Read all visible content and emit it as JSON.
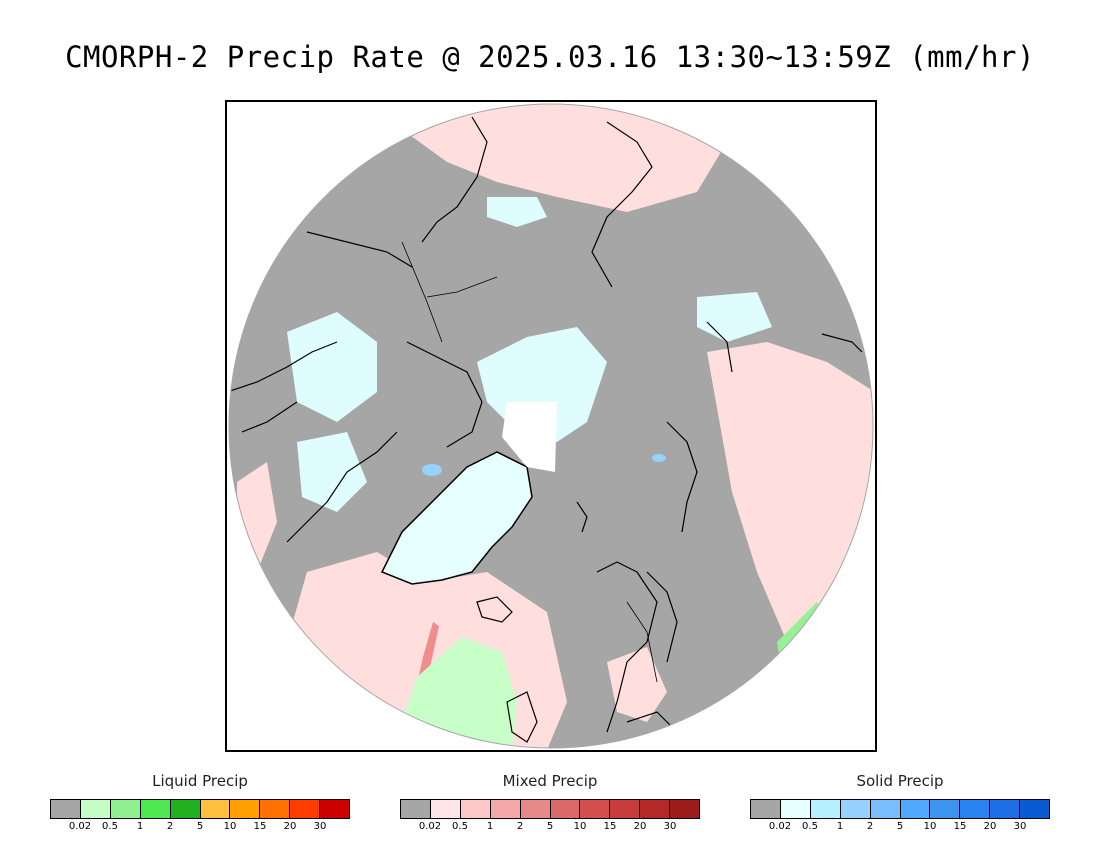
{
  "title": "CMORPH-2 Precip Rate @ 2025.03.16 13:30~13:59Z (mm/hr)",
  "map": {
    "projection": "north polar stereographic",
    "background_color": "#a6a6a6",
    "features": [
      {
        "name": "greenland-ice-sheet",
        "category": "solid",
        "color": "#e6ffff"
      },
      {
        "name": "north-pole-snow",
        "category": "solid",
        "color": "#ffffff"
      },
      {
        "name": "north-pacific-mixed-precip",
        "category": "mixed",
        "color": "#ffdddd"
      },
      {
        "name": "north-atlantic-mixed-precip",
        "category": "mixed",
        "color": "#ffdddd"
      },
      {
        "name": "siberia-mixed-precip",
        "category": "mixed",
        "color": "#ffdddd"
      },
      {
        "name": "north-atlantic-liquid-precip",
        "category": "liquid",
        "color": "#c6ffc6"
      },
      {
        "name": "central-asia-liquid-precip",
        "category": "liquid",
        "color": "#8ef08e"
      }
    ]
  },
  "legends": [
    {
      "name": "liquid",
      "title": "Liquid Precip",
      "colors": [
        "#a6a6a6",
        "#c6ffc6",
        "#8ef08e",
        "#50e850",
        "#20b020",
        "#ffc040",
        "#ffa000",
        "#ff7000",
        "#ff3c00",
        "#cc0000"
      ],
      "ticks": [
        "0.02",
        "0.5",
        "1",
        "2",
        "5",
        "10",
        "15",
        "20",
        "30"
      ]
    },
    {
      "name": "mixed",
      "title": "Mixed Precip",
      "colors": [
        "#a6a6a6",
        "#ffe6e6",
        "#ffc8c8",
        "#f4a8a8",
        "#e88888",
        "#dd6a6a",
        "#d45050",
        "#c83c3c",
        "#b42828",
        "#9c1c1c"
      ],
      "ticks": [
        "0.02",
        "0.5",
        "1",
        "2",
        "5",
        "10",
        "15",
        "20",
        "30"
      ]
    },
    {
      "name": "solid",
      "title": "Solid Precip",
      "colors": [
        "#a6a6a6",
        "#e6ffff",
        "#b4f0ff",
        "#96d2ff",
        "#78beff",
        "#50a8ff",
        "#3c96f0",
        "#2882f0",
        "#1e6ee6",
        "#0a5ad2"
      ],
      "ticks": [
        "0.02",
        "0.5",
        "1",
        "2",
        "5",
        "10",
        "15",
        "20",
        "30"
      ]
    }
  ]
}
